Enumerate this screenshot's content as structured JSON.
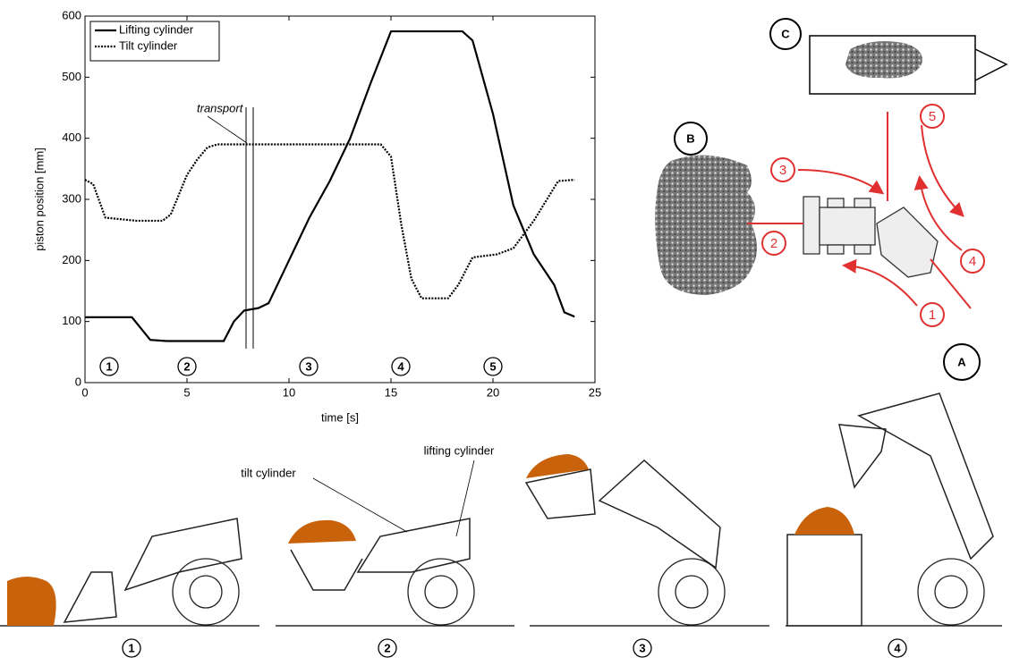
{
  "chart_data": {
    "type": "line",
    "xlabel": "time [s]",
    "ylabel": "piston position [mm]",
    "xlim": [
      0,
      25
    ],
    "xticks": [
      0,
      5,
      10,
      15,
      20,
      25
    ],
    "ylim": [
      0,
      600
    ],
    "yticks": [
      0,
      100,
      200,
      300,
      400,
      500,
      600
    ],
    "legend": "upper left",
    "grid": false,
    "annotation": "transport",
    "phase_labels": [
      "1",
      "2",
      "3",
      "4",
      "5"
    ],
    "series": [
      {
        "name": "Lifting cylinder",
        "color": "#000000",
        "style": "solid",
        "x": [
          0,
          2.3,
          3.2,
          4,
          6.8,
          7.3,
          7.8,
          8.5,
          9,
          10,
          11,
          12,
          13,
          14,
          15,
          18.5,
          19,
          20,
          21,
          22,
          23,
          23.5,
          24
        ],
        "values": [
          107,
          107,
          70,
          68,
          68,
          100,
          118,
          122,
          130,
          200,
          270,
          330,
          400,
          490,
          575,
          575,
          560,
          440,
          290,
          210,
          160,
          115,
          108
        ]
      },
      {
        "name": "Tilt cylinder",
        "color": "#000000",
        "style": "dotted",
        "x": [
          0,
          0.4,
          1,
          2.5,
          3.8,
          4.2,
          5,
          5.5,
          6,
          6.5,
          14.5,
          15,
          15.5,
          16,
          16.5,
          17.8,
          18.3,
          19,
          20.2,
          21,
          22,
          23.2,
          24
        ],
        "values": [
          332,
          325,
          270,
          265,
          265,
          275,
          340,
          365,
          385,
          390,
          390,
          370,
          260,
          170,
          138,
          138,
          160,
          205,
          210,
          220,
          265,
          330,
          332
        ]
      }
    ]
  },
  "diagram": {
    "points": [
      "A",
      "B",
      "C"
    ],
    "steps": [
      "1",
      "2",
      "3",
      "4",
      "5"
    ]
  },
  "illustrations": {
    "labels": [
      "tilt cylinder",
      "lifting cylinder"
    ],
    "steps": [
      "1",
      "2",
      "3",
      "4"
    ]
  }
}
